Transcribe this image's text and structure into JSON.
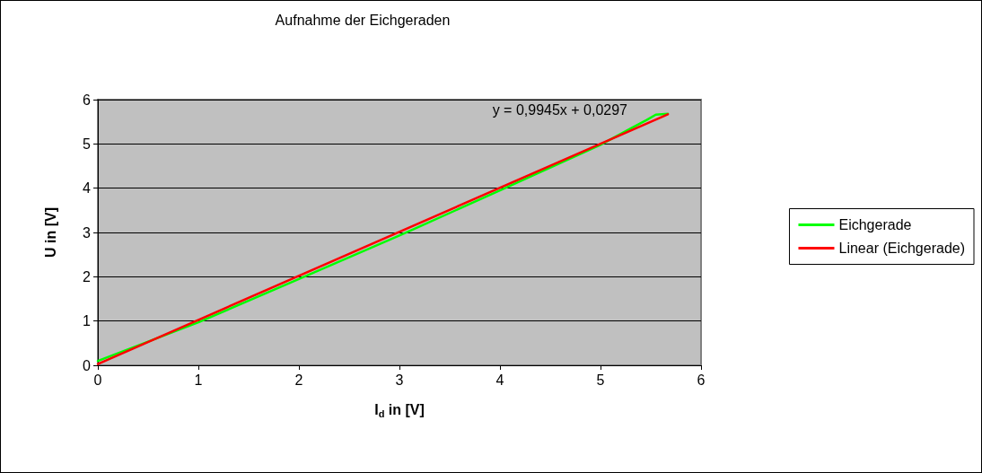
{
  "chart_data": {
    "type": "line",
    "title": "Aufnahme der Eichgeraden",
    "xlabel": "I$_{d}$ in [V]",
    "ylabel": "U in [V]",
    "series": [
      {
        "name": "Eichgerade",
        "color": "#00ff00",
        "x": [
          0,
          1,
          2,
          3,
          4,
          5,
          5.3,
          5.46,
          5.55,
          5.67
        ],
        "values": [
          0.1,
          0.97,
          1.95,
          2.93,
          3.95,
          4.98,
          5.35,
          5.54,
          5.66,
          5.68
        ]
      },
      {
        "name": "Linear (Eichgerade)",
        "color": "#ff0000",
        "x": [
          0,
          5.67
        ],
        "values": [
          0.03,
          5.67
        ]
      }
    ],
    "annotations": [
      "y = 0,9945x + 0,0297"
    ],
    "xlim": [
      0,
      6
    ],
    "xticks": [
      0,
      1,
      2,
      3,
      4,
      5,
      6
    ],
    "ylim": [
      0,
      6
    ],
    "yticks": [
      0,
      1,
      2,
      3,
      4,
      5,
      6
    ],
    "grid": "y",
    "legend": "right",
    "marker": "none",
    "line_style": "solid"
  }
}
